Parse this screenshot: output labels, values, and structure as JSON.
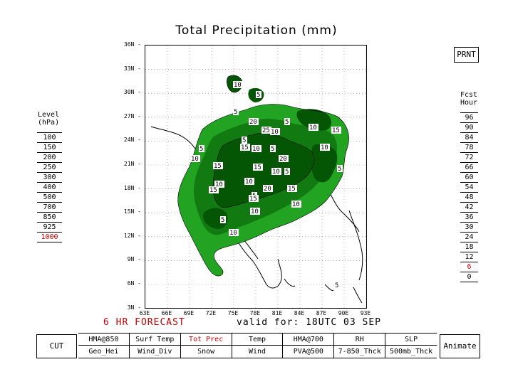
{
  "title": "Total Precipitation (mm)",
  "print_label": "PRNT",
  "level": {
    "heading_line1": "Level",
    "heading_line2": "(hPa)",
    "items": [
      "100",
      "150",
      "200",
      "250",
      "300",
      "400",
      "500",
      "700",
      "850",
      "925",
      "1000"
    ],
    "selected": "1000"
  },
  "forecast_hour": {
    "heading_line1": "Fcst",
    "heading_line2": "Hour",
    "items": [
      "96",
      "90",
      "84",
      "78",
      "72",
      "66",
      "60",
      "54",
      "48",
      "42",
      "36",
      "30",
      "24",
      "18",
      "12",
      "6",
      "0"
    ],
    "highlighted": [
      "6"
    ]
  },
  "latitudes": [
    "36N",
    "33N",
    "30N",
    "27N",
    "24N",
    "21N",
    "18N",
    "15N",
    "12N",
    "9N",
    "6N",
    "3N"
  ],
  "longitudes": [
    "63E",
    "66E",
    "69E",
    "72E",
    "75E",
    "78E",
    "81E",
    "84E",
    "87E",
    "90E",
    "93E"
  ],
  "forecast_label": "6 HR FORECAST",
  "valid_label": "valid for: 18UTC 03 SEP",
  "cut_label": "CUT",
  "animate_label": "Animate",
  "fields_row1": [
    "HMA@850",
    "Surf Temp",
    "Tot Prec",
    "Temp",
    "HMA@700",
    "RH",
    "SLP"
  ],
  "fields_row2": [
    "Geo_Hei",
    "Wind_Div",
    "Snow",
    "Wind",
    "PVA@500",
    "7-850_Thck",
    "500mb_Thck"
  ],
  "selected_field": "Tot Prec",
  "contour_labels": [
    "5",
    "10",
    "15",
    "20",
    "25",
    "5",
    "10",
    "15",
    "10",
    "5",
    "15",
    "10",
    "5",
    "20",
    "15",
    "10",
    "5",
    "10",
    "15",
    "10",
    "5",
    "20",
    "15",
    "10",
    "5",
    "10",
    "15",
    "10",
    "5",
    "10",
    "5",
    "10",
    "5",
    "5"
  ],
  "colors": {
    "light_green": "#22a322",
    "mid_green": "#117a11",
    "dark_green": "#045504",
    "highlight_red": "#d00000"
  }
}
